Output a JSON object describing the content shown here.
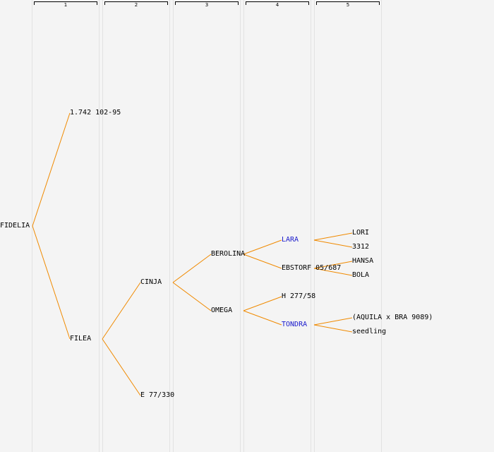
{
  "colors": {
    "line": "#f08a00",
    "link_text": "#1a1acc",
    "text": "#000000",
    "background": "#f4f4f4"
  },
  "generations": [
    "1",
    "2",
    "3",
    "4",
    "5"
  ],
  "tree": {
    "name": "FIDELIA",
    "children": [
      {
        "name": "1.742 102-95"
      },
      {
        "name": "FILEA",
        "children": [
          {
            "name": "CINJA",
            "children": [
              {
                "name": "BEROLINA",
                "children": [
                  {
                    "name": "LARA",
                    "link": true,
                    "children": [
                      {
                        "name": "LORI"
                      },
                      {
                        "name": "3312"
                      }
                    ]
                  },
                  {
                    "name": "EBSTORF 05/687",
                    "children": [
                      {
                        "name": "HANSA"
                      },
                      {
                        "name": "BOLA"
                      }
                    ]
                  }
                ]
              },
              {
                "name": "OMEGA",
                "children": [
                  {
                    "name": "H 277/58"
                  },
                  {
                    "name": "TONDRA",
                    "link": true,
                    "children": [
                      {
                        "name": "(AQUILA x BRA 9089)"
                      },
                      {
                        "name": "seedling"
                      }
                    ]
                  }
                ]
              }
            ]
          },
          {
            "name": "E 77/330"
          }
        ]
      }
    ]
  }
}
